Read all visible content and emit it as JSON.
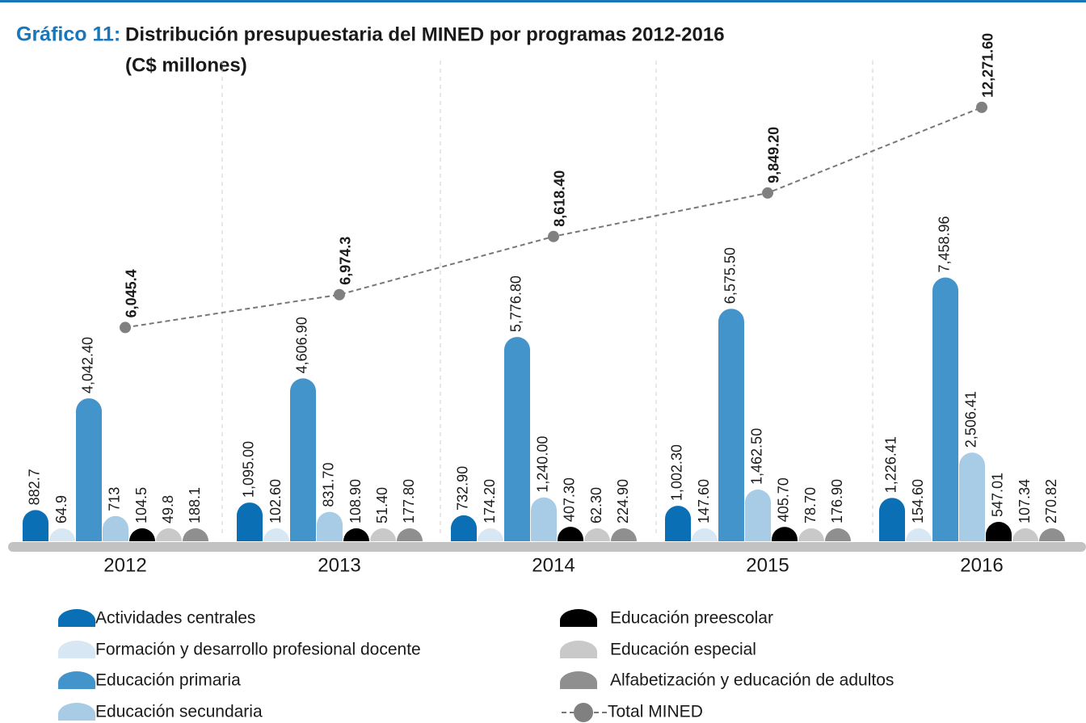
{
  "chart_data": {
    "type": "bar",
    "title_label": "Gráfico 11:",
    "title": "Distribución presupuestaria del MINED por programas 2012-2016",
    "subtitle": "(C$ millones)",
    "categories": [
      "2012",
      "2013",
      "2014",
      "2015",
      "2016"
    ],
    "ylim": [
      0,
      13000
    ],
    "series": [
      {
        "name": "Actividades centrales",
        "color": "#0a6fb5",
        "values": [
          882.7,
          1095.0,
          732.9,
          1002.3,
          1226.41
        ],
        "value_labels": [
          "882.7",
          "1,095.00",
          "732.90",
          "1,002.30",
          "1,226.41"
        ]
      },
      {
        "name": "Formación y desarrollo profesional docente",
        "color": "#d7e8f4",
        "values": [
          64.9,
          102.6,
          174.2,
          147.6,
          154.6
        ],
        "value_labels": [
          "64.9",
          "102.60",
          "174.20",
          "147.60",
          "154.60"
        ]
      },
      {
        "name": "Educación primaria",
        "color": "#4494cc",
        "values": [
          4042.4,
          4606.9,
          5776.8,
          6575.5,
          7458.96
        ],
        "value_labels": [
          "4,042.40",
          "4,606.90",
          "5,776.80",
          "6,575.50",
          "7,458.96"
        ]
      },
      {
        "name": "Educación secundaria",
        "color": "#a8cce6",
        "values": [
          713,
          831.7,
          1240.0,
          1462.5,
          2506.41
        ],
        "value_labels": [
          "713",
          "831.70",
          "1,240.00",
          "1,462.50",
          "2,506.41"
        ]
      },
      {
        "name": "Educación preescolar",
        "color": "#000000",
        "values": [
          104.5,
          108.9,
          407.3,
          405.7,
          547.01
        ],
        "value_labels": [
          "104.5",
          "108.90",
          "407.30",
          "405.70",
          "547.01"
        ]
      },
      {
        "name": "Educación especial",
        "color": "#c9c9c9",
        "values": [
          49.8,
          51.4,
          62.3,
          78.7,
          107.34
        ],
        "value_labels": [
          "49.8",
          "51.40",
          "62.30",
          "78.70",
          "107.34"
        ]
      },
      {
        "name": "Alfabetización y educación de adultos",
        "color": "#8f8f8f",
        "values": [
          188.1,
          177.8,
          224.9,
          176.9,
          270.82
        ],
        "value_labels": [
          "188.1",
          "177.80",
          "224.90",
          "176.90",
          "270.82"
        ]
      },
      {
        "name": "Total MINED",
        "type": "line",
        "color": "#808080",
        "values": [
          6045.4,
          6974.3,
          8618.4,
          9849.2,
          12271.6
        ],
        "value_labels": [
          "6,045.4",
          "6,974.3",
          "8,618.40",
          "9,849.20",
          "12,271.60"
        ]
      }
    ]
  }
}
